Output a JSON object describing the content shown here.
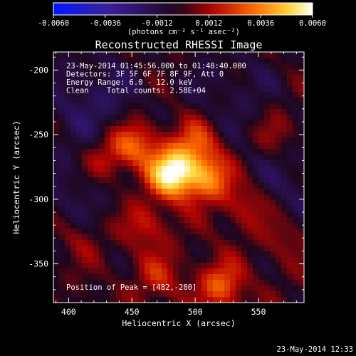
{
  "colorbar": {
    "ticks": [
      "-0.0060",
      "-0.0036",
      "-0.0012",
      "0.0012",
      "0.0036",
      "0.0060"
    ],
    "tick_values": [
      -0.006,
      -0.0036,
      -0.0012,
      0.0012,
      0.0036,
      0.006
    ],
    "range": [
      -0.006,
      0.006
    ],
    "unit_label": "(photons cm⁻² s⁻¹ asec⁻²)",
    "colors": [
      "#0018ff",
      "#3a1fa3",
      "#20061e",
      "#b60400",
      "#ff7a00",
      "#ffdc40",
      "#ffffff"
    ]
  },
  "chart_data": {
    "type": "heatmap",
    "title": "Reconstructed RHESSI Image",
    "xlabel": "Heliocentric X (arcsec)",
    "ylabel": "Heliocentric Y (arcsec)",
    "xlim": [
      388,
      586
    ],
    "ylim": [
      -380,
      -186
    ],
    "xticks": [
      400,
      450,
      500,
      550
    ],
    "yticks": [
      -200,
      -250,
      -300,
      -350
    ],
    "xtick_labels": [
      "400",
      "450",
      "500",
      "550"
    ],
    "ytick_labels": [
      "-200",
      "-250",
      "-300",
      "-350"
    ],
    "peak": [
      482,
      -280
    ],
    "sources": [
      {
        "x": 482,
        "y": -280,
        "value": 0.006
      },
      {
        "x": 510,
        "y": -283,
        "value": 0.0036
      },
      {
        "x": 453,
        "y": -257,
        "value": 0.003
      },
      {
        "x": 500,
        "y": -256,
        "value": 0.0025
      },
      {
        "x": 520,
        "y": -367,
        "value": 0.0028
      },
      {
        "x": 430,
        "y": -268,
        "value": 0.002
      },
      {
        "x": 460,
        "y": -320,
        "value": 0.0018
      },
      {
        "x": 540,
        "y": -305,
        "value": 0.0018
      },
      {
        "x": 470,
        "y": -360,
        "value": 0.0016
      },
      {
        "x": 565,
        "y": -250,
        "value": 0.0014
      },
      {
        "x": 570,
        "y": -330,
        "value": 0.0012
      },
      {
        "x": 410,
        "y": -330,
        "value": 0.0012
      },
      {
        "x": 420,
        "y": -225,
        "value": -0.0016
      },
      {
        "x": 405,
        "y": -300,
        "value": -0.001
      },
      {
        "x": 530,
        "y": -215,
        "value": -0.001
      },
      {
        "x": 575,
        "y": -285,
        "value": -0.0012
      }
    ],
    "annotations": [
      "23-May-2014 01:45:56.000 to 01:48:40.000",
      "Detectors: 3F 5F 6F 7F 8F 9F, Att 0",
      "Energy Range: 6.0 - 12.0 keV",
      "Clean    Total counts: 2.58E+04"
    ],
    "peak_label": "Position of Peak = [482,-280]"
  },
  "footer_timestamp": "23-May-2014 12:33"
}
